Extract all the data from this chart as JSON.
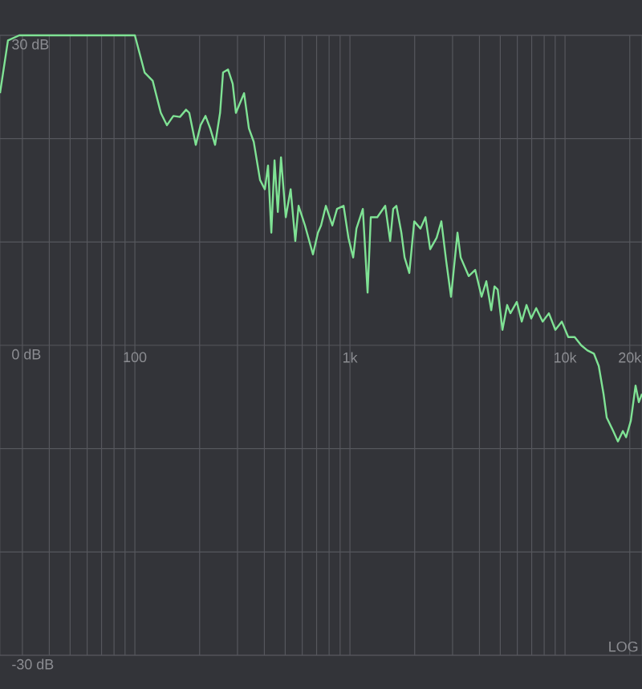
{
  "chart_data": {
    "type": "line",
    "color": "#7fe294",
    "log": "x",
    "grid": true,
    "xlim": [
      23.6,
      22800
    ],
    "ylim": [
      -30,
      30
    ],
    "xticks": [
      {
        "value": 30,
        "label": null
      },
      {
        "value": 40,
        "label": null
      },
      {
        "value": 50,
        "label": null
      },
      {
        "value": 60,
        "label": null
      },
      {
        "value": 70,
        "label": null
      },
      {
        "value": 80,
        "label": null
      },
      {
        "value": 90,
        "label": null
      },
      100,
      {
        "value": 200,
        "label": null
      },
      {
        "value": 300,
        "label": null
      },
      {
        "value": 400,
        "label": null
      },
      {
        "value": 500,
        "label": null
      },
      {
        "value": 600,
        "label": null
      },
      {
        "value": 700,
        "label": null
      },
      {
        "value": 800,
        "label": null
      },
      {
        "value": 900,
        "label": null
      },
      {
        "value": 1000,
        "label": "1k"
      },
      {
        "value": 2000,
        "label": null
      },
      {
        "value": 3000,
        "label": null
      },
      {
        "value": 4000,
        "label": null
      },
      {
        "value": 5000,
        "label": null
      },
      {
        "value": 6000,
        "label": null
      },
      {
        "value": 7000,
        "label": null
      },
      {
        "value": 8000,
        "label": null
      },
      {
        "value": 9000,
        "label": null
      },
      {
        "value": 10000,
        "label": "10k"
      },
      {
        "value": 20000,
        "label": "20k"
      }
    ],
    "yticks": [
      {
        "value": 30,
        "label": "30 dB"
      },
      {
        "value": 20,
        "label": null
      },
      {
        "value": 10,
        "label": null
      },
      {
        "value": 0,
        "label": "0 dB"
      },
      {
        "value": -10,
        "label": null
      },
      {
        "value": -20,
        "label": null
      },
      {
        "value": -30,
        "label": "-30 dB"
      }
    ],
    "annotations": [
      "LOG"
    ],
    "x": [
      23.6,
      25.7,
      29,
      100,
      111,
      121,
      132,
      141,
      151,
      162,
      173,
      179,
      192,
      202,
      213,
      224,
      236,
      249,
      257,
      271,
      285,
      295,
      306,
      322,
      339,
      357,
      382,
      402,
      416,
      431,
      446,
      462,
      478,
      503,
      530,
      557,
      577,
      618,
      673,
      710,
      734,
      773,
      828,
      871,
      934,
      984,
      1035,
      1072,
      1148,
      1208,
      1250,
      1340,
      1459,
      1538,
      1589,
      1644,
      1734,
      1795,
      1888,
      1991,
      2128,
      2244,
      2360,
      2529,
      2661,
      2805,
      2951,
      3162,
      3273,
      3565,
      3822,
      4093,
      4305,
      4539,
      4699,
      4864,
      5117,
      5383,
      5572,
      5970,
      6293,
      6622,
      6966,
      7345,
      7870,
      8414,
      9016,
      9660,
      10350,
      11090,
      11890,
      12710,
      13620,
      14350,
      15100,
      15630,
      16750,
      17620,
      18580,
      19230,
      20230,
      21280,
      22030,
      22800
    ],
    "values": [
      24.4,
      29.5,
      30,
      30,
      26.4,
      25.6,
      22.5,
      21.3,
      22.2,
      22.1,
      22.8,
      22.5,
      19.4,
      21.3,
      22.2,
      21.0,
      19.4,
      22.5,
      26.4,
      26.7,
      25.3,
      22.5,
      23.3,
      24.4,
      21.0,
      19.7,
      16.0,
      15.1,
      17.4,
      10.9,
      17.9,
      12.9,
      18.2,
      12.4,
      15.1,
      10.1,
      13.5,
      11.6,
      8.8,
      10.9,
      11.6,
      13.5,
      11.6,
      13.2,
      13.5,
      10.4,
      8.5,
      11.3,
      13.2,
      5.1,
      12.4,
      12.4,
      13.5,
      10.1,
      13.2,
      13.5,
      10.9,
      8.5,
      7.0,
      12.0,
      11.3,
      12.4,
      9.3,
      10.4,
      12.0,
      8.1,
      4.7,
      10.9,
      8.5,
      6.7,
      7.3,
      4.7,
      6.2,
      3.4,
      5.7,
      5.4,
      1.5,
      3.9,
      3.1,
      4.2,
      2.3,
      3.9,
      2.6,
      3.6,
      2.3,
      3.1,
      1.5,
      2.3,
      0.8,
      0.8,
      0.0,
      -0.5,
      -0.8,
      -2.0,
      -4.7,
      -7.0,
      -8.3,
      -9.3,
      -8.3,
      -8.9,
      -7.3,
      -3.9,
      -5.5,
      -4.7
    ]
  }
}
